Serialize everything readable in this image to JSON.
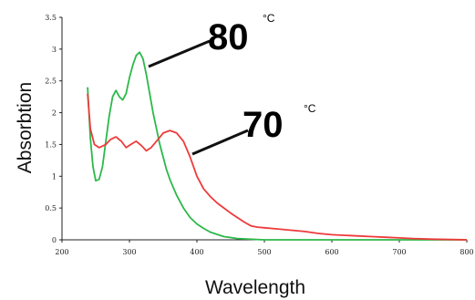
{
  "chart_data": {
    "type": "line",
    "xlabel": "Wavelength",
    "ylabel": "Absorbtion",
    "xlim": [
      200,
      800
    ],
    "ylim": [
      0,
      3.5
    ],
    "x_ticks": [
      "200",
      "300",
      "400",
      "500",
      "600",
      "700",
      "800"
    ],
    "y_ticks": [
      "0",
      "0.5",
      "1",
      "1.5",
      "2",
      "2.5",
      "3",
      "3.5"
    ],
    "grid": false,
    "series": [
      {
        "name": "80 °C",
        "color": "#2db84a",
        "points": [
          [
            238,
            2.4
          ],
          [
            242,
            1.6
          ],
          [
            246,
            1.15
          ],
          [
            250,
            0.93
          ],
          [
            255,
            0.95
          ],
          [
            260,
            1.15
          ],
          [
            265,
            1.55
          ],
          [
            270,
            1.95
          ],
          [
            275,
            2.25
          ],
          [
            280,
            2.35
          ],
          [
            285,
            2.25
          ],
          [
            290,
            2.2
          ],
          [
            295,
            2.3
          ],
          [
            300,
            2.55
          ],
          [
            305,
            2.75
          ],
          [
            310,
            2.9
          ],
          [
            315,
            2.95
          ],
          [
            320,
            2.85
          ],
          [
            325,
            2.6
          ],
          [
            330,
            2.3
          ],
          [
            335,
            2.0
          ],
          [
            340,
            1.75
          ],
          [
            345,
            1.5
          ],
          [
            350,
            1.3
          ],
          [
            355,
            1.1
          ],
          [
            360,
            0.95
          ],
          [
            365,
            0.82
          ],
          [
            370,
            0.7
          ],
          [
            380,
            0.5
          ],
          [
            390,
            0.35
          ],
          [
            400,
            0.25
          ],
          [
            410,
            0.18
          ],
          [
            420,
            0.12
          ],
          [
            440,
            0.05
          ],
          [
            460,
            0.02
          ],
          [
            500,
            0.0
          ],
          [
            600,
            0.0
          ],
          [
            800,
            0.0
          ]
        ]
      },
      {
        "name": "70 °C",
        "color": "#ee3b3b",
        "points": [
          [
            238,
            2.3
          ],
          [
            242,
            1.75
          ],
          [
            248,
            1.5
          ],
          [
            255,
            1.45
          ],
          [
            265,
            1.5
          ],
          [
            272,
            1.58
          ],
          [
            280,
            1.62
          ],
          [
            288,
            1.55
          ],
          [
            295,
            1.45
          ],
          [
            302,
            1.5
          ],
          [
            310,
            1.55
          ],
          [
            318,
            1.48
          ],
          [
            325,
            1.4
          ],
          [
            332,
            1.45
          ],
          [
            340,
            1.55
          ],
          [
            350,
            1.68
          ],
          [
            360,
            1.72
          ],
          [
            370,
            1.68
          ],
          [
            380,
            1.55
          ],
          [
            390,
            1.3
          ],
          [
            400,
            1.0
          ],
          [
            410,
            0.8
          ],
          [
            420,
            0.68
          ],
          [
            430,
            0.58
          ],
          [
            440,
            0.5
          ],
          [
            450,
            0.42
          ],
          [
            460,
            0.35
          ],
          [
            470,
            0.28
          ],
          [
            480,
            0.22
          ],
          [
            490,
            0.2
          ],
          [
            500,
            0.19
          ],
          [
            520,
            0.17
          ],
          [
            540,
            0.15
          ],
          [
            560,
            0.13
          ],
          [
            580,
            0.1
          ],
          [
            600,
            0.08
          ],
          [
            620,
            0.07
          ],
          [
            640,
            0.06
          ],
          [
            660,
            0.05
          ],
          [
            680,
            0.04
          ],
          [
            700,
            0.03
          ],
          [
            720,
            0.02
          ],
          [
            750,
            0.01
          ],
          [
            800,
            0.0
          ]
        ]
      }
    ],
    "annotations": [
      {
        "text": "80",
        "unit": "°C"
      },
      {
        "text": "70",
        "unit": "°C"
      }
    ]
  }
}
